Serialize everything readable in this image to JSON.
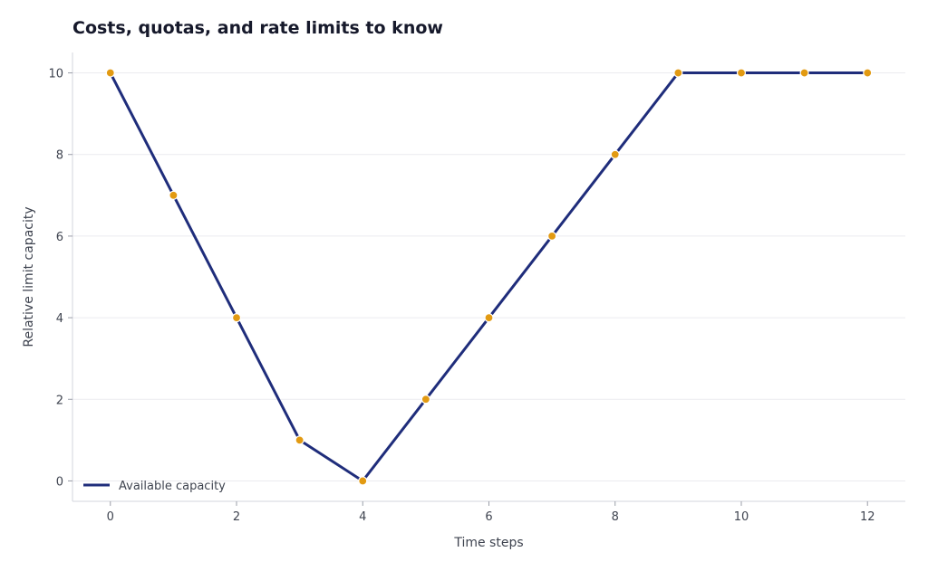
{
  "chart_data": {
    "type": "line",
    "title": "Costs, quotas, and rate limits to know",
    "xlabel": "Time steps",
    "ylabel": "Relative limit capacity",
    "xlim": [
      -0.6,
      12.6
    ],
    "ylim": [
      -0.5,
      10.5
    ],
    "xticks": [
      0,
      2,
      4,
      6,
      8,
      10,
      12
    ],
    "yticks": [
      0,
      2,
      4,
      6,
      8,
      10
    ],
    "grid": "horizontal",
    "legend_position": "lower-left",
    "x": [
      0,
      1,
      2,
      3,
      4,
      5,
      6,
      7,
      8,
      9,
      10,
      11,
      12
    ],
    "series": [
      {
        "name": "Available capacity",
        "values": [
          10,
          7,
          4,
          1,
          0,
          2,
          4,
          6,
          8,
          10,
          10,
          10,
          10
        ],
        "line_color": "#1f2d7b",
        "marker_color": "#e29a12"
      }
    ]
  }
}
